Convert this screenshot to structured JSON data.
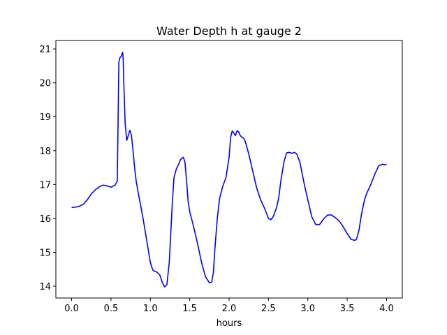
{
  "chart_data": {
    "type": "line",
    "title": "Water Depth h at gauge 2",
    "xlabel": "hours",
    "ylabel": "",
    "xlim": [
      -0.2,
      4.2
    ],
    "ylim": [
      13.65,
      21.25
    ],
    "xticks": [
      0.0,
      0.5,
      1.0,
      1.5,
      2.0,
      2.5,
      3.0,
      3.5,
      4.0
    ],
    "xtick_labels": [
      "0.0",
      "0.5",
      "1.0",
      "1.5",
      "2.0",
      "2.5",
      "3.0",
      "3.5",
      "4.0"
    ],
    "yticks": [
      14,
      15,
      16,
      17,
      18,
      19,
      20,
      21
    ],
    "ytick_labels": [
      "14",
      "15",
      "16",
      "17",
      "18",
      "19",
      "20",
      "21"
    ],
    "grid": false,
    "series": [
      {
        "color": "#0000ff",
        "x": [
          0.0,
          0.05,
          0.1,
          0.15,
          0.2,
          0.25,
          0.3,
          0.35,
          0.4,
          0.45,
          0.5,
          0.55,
          0.58,
          0.6,
          0.61,
          0.62,
          0.63,
          0.64,
          0.65,
          0.655,
          0.66,
          0.67,
          0.68,
          0.7,
          0.72,
          0.74,
          0.76,
          0.78,
          0.8,
          0.82,
          0.85,
          0.9,
          0.95,
          1.0,
          1.03,
          1.06,
          1.08,
          1.12,
          1.15,
          1.18,
          1.21,
          1.24,
          1.26,
          1.28,
          1.3,
          1.33,
          1.36,
          1.38,
          1.4,
          1.42,
          1.44,
          1.46,
          1.48,
          1.5,
          1.55,
          1.6,
          1.65,
          1.7,
          1.75,
          1.78,
          1.8,
          1.82,
          1.85,
          1.88,
          1.92,
          1.96,
          2.0,
          2.02,
          2.04,
          2.06,
          2.08,
          2.1,
          2.12,
          2.14,
          2.16,
          2.18,
          2.2,
          2.22,
          2.25,
          2.3,
          2.35,
          2.4,
          2.45,
          2.5,
          2.53,
          2.56,
          2.6,
          2.63,
          2.66,
          2.7,
          2.73,
          2.76,
          2.8,
          2.83,
          2.86,
          2.9,
          2.93,
          2.96,
          3.0,
          3.05,
          3.1,
          3.15,
          3.2,
          3.25,
          3.3,
          3.35,
          3.4,
          3.45,
          3.5,
          3.55,
          3.6,
          3.62,
          3.65,
          3.68,
          3.72,
          3.75,
          3.8,
          3.85,
          3.9,
          3.95,
          3.98,
          4.0
        ],
        "y": [
          16.32,
          16.33,
          16.36,
          16.42,
          16.55,
          16.72,
          16.84,
          16.93,
          16.98,
          16.96,
          16.92,
          16.98,
          17.1,
          20.6,
          20.72,
          20.76,
          20.78,
          20.86,
          20.9,
          20.7,
          20.2,
          19.5,
          18.8,
          18.3,
          18.45,
          18.6,
          18.45,
          18.0,
          17.5,
          17.1,
          16.7,
          16.1,
          15.4,
          14.7,
          14.48,
          14.43,
          14.42,
          14.33,
          14.12,
          13.98,
          14.04,
          14.7,
          15.6,
          16.5,
          17.2,
          17.46,
          17.6,
          17.72,
          17.78,
          17.8,
          17.65,
          17.1,
          16.5,
          16.2,
          15.75,
          15.25,
          14.7,
          14.28,
          14.1,
          14.12,
          14.4,
          15.1,
          16.0,
          16.6,
          16.95,
          17.2,
          17.8,
          18.4,
          18.58,
          18.52,
          18.44,
          18.58,
          18.56,
          18.45,
          18.4,
          18.38,
          18.3,
          18.15,
          17.9,
          17.4,
          16.9,
          16.55,
          16.3,
          16.0,
          15.96,
          16.05,
          16.3,
          16.6,
          17.15,
          17.7,
          17.93,
          17.95,
          17.92,
          17.95,
          17.9,
          17.65,
          17.3,
          16.95,
          16.55,
          16.05,
          15.82,
          15.82,
          15.98,
          16.1,
          16.1,
          16.02,
          15.92,
          15.75,
          15.55,
          15.38,
          15.35,
          15.4,
          15.65,
          16.1,
          16.55,
          16.75,
          17.0,
          17.3,
          17.55,
          17.6,
          17.58,
          17.6
        ]
      }
    ]
  }
}
